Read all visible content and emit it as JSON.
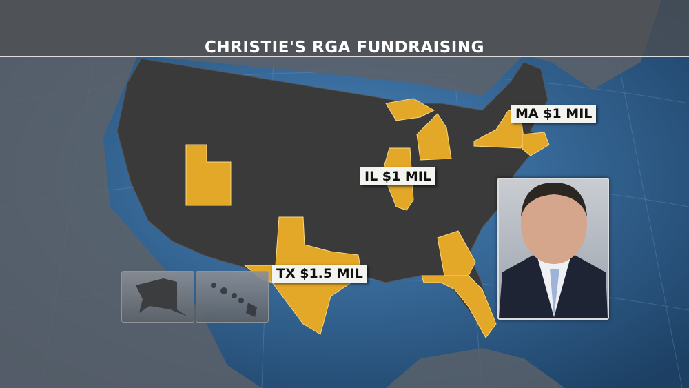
{
  "title": "CHRISTIE'S RGA FUNDRAISING",
  "colors": {
    "highlight": "#e3a827",
    "states": "#3b3b3b",
    "ocean": "#2f6a9e",
    "title_band": "#555555"
  },
  "highlighted_states": [
    "UT",
    "TX",
    "IL",
    "MI",
    "NY",
    "MA",
    "CT",
    "RI",
    "GA",
    "FL"
  ],
  "callouts": [
    {
      "state": "MA",
      "text": "MA $1 MIL"
    },
    {
      "state": "IL",
      "text": "IL $1 MIL"
    },
    {
      "state": "TX",
      "text": "TX $1.5 MIL"
    }
  ],
  "insets": [
    "Alaska",
    "Hawaii"
  ],
  "photo": {
    "subject": "portrait"
  }
}
